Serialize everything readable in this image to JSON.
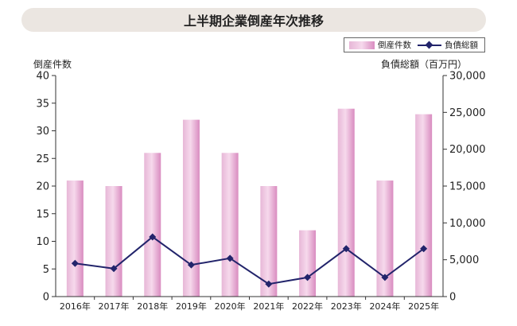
{
  "title": "上半期企業倒産年次推移",
  "chart_data": {
    "type": "bar",
    "categories": [
      "2016年",
      "2017年",
      "2018年",
      "2019年",
      "2020年",
      "2021年",
      "2022年",
      "2023年",
      "2024年",
      "2025年"
    ],
    "series": [
      {
        "name": "倒産件数",
        "type": "bar",
        "axis": "left",
        "values": [
          21,
          20,
          26,
          32,
          26,
          20,
          12,
          34,
          21,
          33
        ]
      },
      {
        "name": "負債総額",
        "type": "line",
        "axis": "right",
        "values": [
          4500,
          3800,
          8100,
          4300,
          5200,
          1700,
          2600,
          6500,
          2600,
          6500
        ]
      }
    ],
    "ylabel_left": "倒産件数",
    "ylabel_right": "負債総額（百万円）",
    "ylim_left": [
      0,
      40
    ],
    "ylim_right": [
      0,
      30000
    ],
    "yticks_left": [
      "0",
      "5",
      "10",
      "15",
      "20",
      "25",
      "30",
      "35",
      "40"
    ],
    "yticks_right": [
      "0",
      "5,000",
      "10,000",
      "15,000",
      "20,000",
      "25,000",
      "30,000"
    ],
    "legend_position": "top-right",
    "grid": false,
    "colors": {
      "bar": "#e7b7d7",
      "bar_highlight": "#f6d9ec",
      "bar_shadow": "#d98cc0",
      "line": "#22246b",
      "title_bg": "#ebe6e1"
    }
  }
}
